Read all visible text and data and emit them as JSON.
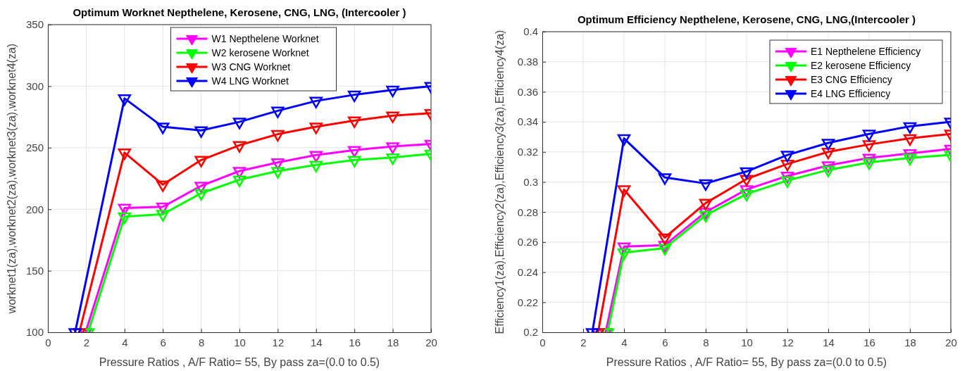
{
  "chart_data": [
    {
      "type": "line",
      "title": "Optimum Worknet Nepthelene, Kerosene, CNG, LNG, (Intercooler )",
      "xlabel": "Pressure Ratios , A/F Ratio= 55, By pass za=(0.0 to 0.5)",
      "ylabel": "worknet1(za),worknet2(za),worknet3(za),worknet4(za)",
      "xlim": [
        0,
        20
      ],
      "ylim": [
        100,
        350
      ],
      "xticks": [
        0,
        2,
        4,
        6,
        8,
        10,
        12,
        14,
        16,
        18,
        20
      ],
      "yticks": [
        100,
        150,
        200,
        250,
        300,
        350
      ],
      "grid": true,
      "legend": "top",
      "marker": "triangle",
      "line_style": "solid",
      "series": [
        {
          "name": "W1 Nepthelene Worknet",
          "color": "#ff00ff",
          "x": [
            1.97,
            4,
            6,
            8,
            10,
            12,
            14,
            16,
            18,
            20
          ],
          "values": [
            100,
            201,
            202,
            219,
            231,
            238,
            244,
            248,
            251,
            253
          ]
        },
        {
          "name": "W2 kerosene Worknet",
          "color": "#00ff00",
          "x": [
            2.1,
            4,
            6,
            8,
            10,
            12,
            14,
            16,
            18,
            20
          ],
          "values": [
            100,
            194,
            196,
            213,
            224,
            231,
            236,
            240,
            242,
            245
          ]
        },
        {
          "name": "W3 CNG Worknet",
          "color": "#ff0000",
          "x": [
            1.64,
            4,
            6,
            8,
            10,
            12,
            14,
            16,
            18,
            20
          ],
          "values": [
            100,
            246,
            220,
            240,
            252,
            261,
            267,
            272,
            276,
            278
          ]
        },
        {
          "name": "W4 LNG Worknet",
          "color": "#0000ff",
          "x": [
            1.42,
            4,
            6,
            8,
            10,
            12,
            14,
            16,
            18,
            20
          ],
          "values": [
            100,
            290,
            267,
            264,
            271,
            280,
            288,
            293,
            297,
            300
          ]
        }
      ]
    },
    {
      "type": "line",
      "title": "Optimum Efficiency Nepthelene, Kerosene, CNG, LNG,(Intercooler )",
      "xlabel": "Pressure Ratios , A/F Ratio= 55, By pass za=(0.0 to 0.5)",
      "ylabel": "Efficiency1(za),Efficiency2(za),Efficiency3(za),Efficiency4(za)",
      "xlim": [
        0,
        20
      ],
      "ylim": [
        0.2,
        0.4
      ],
      "xticks": [
        0,
        2,
        4,
        6,
        8,
        10,
        12,
        14,
        16,
        18,
        20
      ],
      "yticks": [
        0.2,
        0.22,
        0.24,
        0.26,
        0.28,
        0.3,
        0.32,
        0.34,
        0.36,
        0.38,
        0.4
      ],
      "grid": true,
      "legend": "top right",
      "marker": "triangle",
      "line_style": "solid",
      "series": [
        {
          "name": "E1 Nepthelene Efficiency",
          "color": "#ff00ff",
          "x": [
            3.1,
            4,
            6,
            8,
            10,
            12,
            14,
            16,
            18,
            20
          ],
          "values": [
            0.2,
            0.257,
            0.258,
            0.28,
            0.295,
            0.304,
            0.311,
            0.316,
            0.319,
            0.322
          ]
        },
        {
          "name": "E2 kerosene Efficiency",
          "color": "#00ff00",
          "x": [
            3.2,
            4,
            6,
            8,
            10,
            12,
            14,
            16,
            18,
            20
          ],
          "values": [
            0.2,
            0.253,
            0.256,
            0.278,
            0.292,
            0.301,
            0.308,
            0.313,
            0.316,
            0.318
          ]
        },
        {
          "name": "E3 CNG Efficiency",
          "color": "#ff0000",
          "x": [
            2.73,
            4,
            6,
            8,
            10,
            12,
            14,
            16,
            18,
            20
          ],
          "values": [
            0.2,
            0.295,
            0.263,
            0.286,
            0.302,
            0.312,
            0.32,
            0.325,
            0.329,
            0.332
          ]
        },
        {
          "name": "E4 LNG Efficiency",
          "color": "#0000ff",
          "x": [
            2.45,
            4,
            6,
            8,
            10,
            12,
            14,
            16,
            18,
            20
          ],
          "values": [
            0.2,
            0.329,
            0.303,
            0.299,
            0.307,
            0.318,
            0.326,
            0.332,
            0.337,
            0.34
          ]
        }
      ]
    }
  ]
}
